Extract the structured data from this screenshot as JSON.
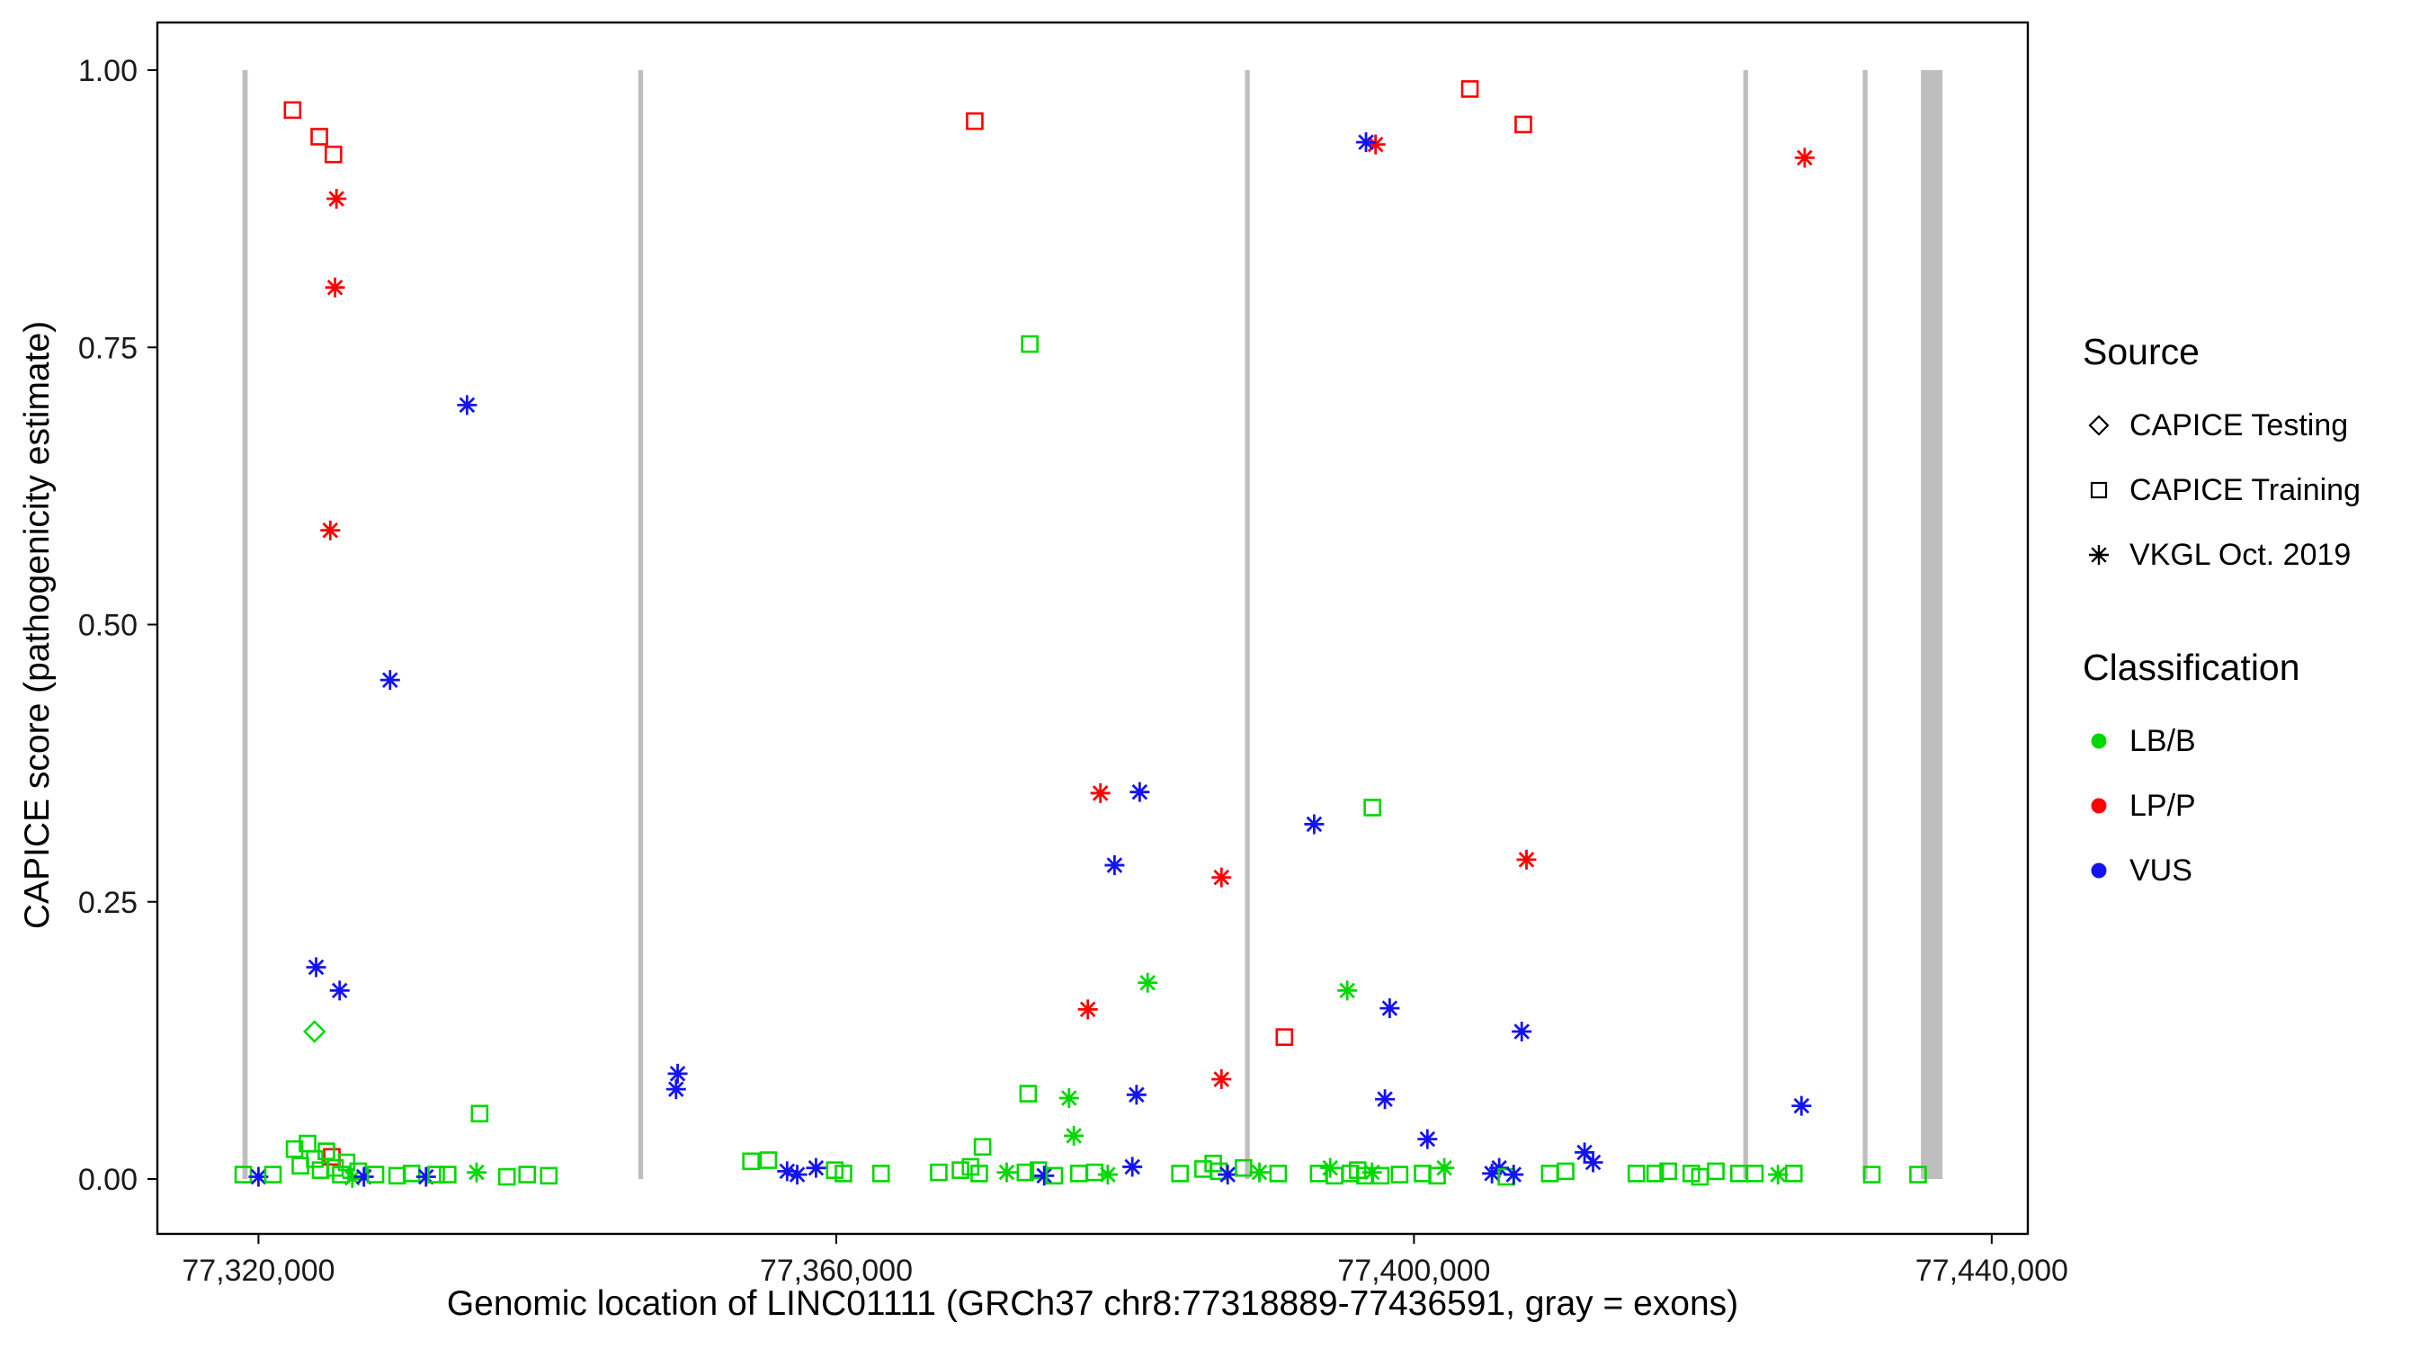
{
  "figure": {
    "background": "#FFFFFF"
  },
  "colors": {
    "B": "#00D800",
    "P": "#FF0000",
    "V": "#1414F0"
  },
  "legend": {
    "source_title": "Source",
    "source_items": [
      {
        "label": "CAPICE Testing",
        "marker": "diamond"
      },
      {
        "label": "CAPICE Training",
        "marker": "square"
      },
      {
        "label": "VKGL Oct. 2019",
        "marker": "asterisk"
      }
    ],
    "classification_title": "Classification",
    "classification_items": [
      {
        "label": "LB/B",
        "color": "#00D800"
      },
      {
        "label": "LP/P",
        "color": "#FF0000"
      },
      {
        "label": "VUS",
        "color": "#1414F0"
      }
    ]
  },
  "chart_data": {
    "type": "scatter",
    "title": "",
    "xlabel": "Genomic location of LINC01111 (GRCh37 chr8:77318889-77436591, gray = exons)",
    "ylabel": "CAPICE score (pathogenicity estimate)",
    "xlim": [
      77313000,
      77442500
    ],
    "ylim": [
      0,
      1
    ],
    "grid": false,
    "legend_position": "right",
    "x_ticks": [
      {
        "value": 77320000,
        "label": "77,320,000"
      },
      {
        "value": 77360000,
        "label": "77,360,000"
      },
      {
        "value": 77400000,
        "label": "77,400,000"
      },
      {
        "value": 77440000,
        "label": "77,440,000"
      }
    ],
    "y_ticks": [
      {
        "value": 1.0,
        "label": "1.00"
      },
      {
        "value": 0.75,
        "label": "0.75"
      },
      {
        "value": 0.5,
        "label": "0.50"
      },
      {
        "value": 0.25,
        "label": "0.25"
      },
      {
        "value": 0.0,
        "label": "0.00"
      }
    ],
    "exon_color": "#BEBEBE",
    "exons": [
      [
        77318889,
        77319250
      ],
      [
        77346300,
        77346630
      ],
      [
        77388300,
        77388630
      ],
      [
        77422800,
        77423130
      ],
      [
        77431070,
        77431400
      ],
      [
        77435100,
        77436591
      ]
    ],
    "source_codes": {
      "D": "CAPICE Testing",
      "S": "CAPICE Training",
      "A": "VKGL Oct. 2019"
    },
    "class_codes": {
      "B": "LB/B",
      "P": "LP/P",
      "V": "VUS"
    },
    "points": [
      [
        77322360,
        0.964,
        "S",
        "P"
      ],
      [
        77324210,
        0.94,
        "S",
        "P"
      ],
      [
        77325190,
        0.924,
        "S",
        "P"
      ],
      [
        77369590,
        0.954,
        "S",
        "P"
      ],
      [
        77403870,
        0.983,
        "S",
        "P"
      ],
      [
        77407570,
        0.951,
        "S",
        "P"
      ],
      [
        77391030,
        0.128,
        "S",
        "P"
      ],
      [
        77325080,
        0.02,
        "S",
        "P"
      ],
      [
        77325400,
        0.884,
        "A",
        "P"
      ],
      [
        77325300,
        0.804,
        "A",
        "P"
      ],
      [
        77324970,
        0.585,
        "A",
        "P"
      ],
      [
        77397340,
        0.933,
        "A",
        "P"
      ],
      [
        77427050,
        0.921,
        "A",
        "P"
      ],
      [
        77378290,
        0.348,
        "A",
        "P"
      ],
      [
        77386670,
        0.272,
        "A",
        "P"
      ],
      [
        77407790,
        0.288,
        "A",
        "P"
      ],
      [
        77377420,
        0.153,
        "A",
        "P"
      ],
      [
        77386670,
        0.09,
        "A",
        "P"
      ],
      [
        77334440,
        0.698,
        "A",
        "V"
      ],
      [
        77329110,
        0.45,
        "A",
        "V"
      ],
      [
        77323990,
        0.191,
        "A",
        "V"
      ],
      [
        77325620,
        0.17,
        "A",
        "V"
      ],
      [
        77396680,
        0.935,
        "A",
        "V"
      ],
      [
        77381010,
        0.349,
        "A",
        "V"
      ],
      [
        77379270,
        0.283,
        "A",
        "V"
      ],
      [
        77393090,
        0.32,
        "A",
        "V"
      ],
      [
        77398320,
        0.154,
        "A",
        "V"
      ],
      [
        77407460,
        0.133,
        "A",
        "V"
      ],
      [
        77380790,
        0.076,
        "A",
        "V"
      ],
      [
        77397990,
        0.072,
        "A",
        "V"
      ],
      [
        77426830,
        0.066,
        "A",
        "V"
      ],
      [
        77349020,
        0.095,
        "A",
        "V"
      ],
      [
        77348910,
        0.081,
        "A",
        "V"
      ],
      [
        77400930,
        0.036,
        "A",
        "V"
      ],
      [
        77411810,
        0.024,
        "A",
        "V"
      ],
      [
        77373400,
        0.753,
        "S",
        "B"
      ],
      [
        77397120,
        0.335,
        "S",
        "B"
      ],
      [
        77335310,
        0.059,
        "S",
        "B"
      ],
      [
        77373290,
        0.077,
        "S",
        "B"
      ],
      [
        77370130,
        0.029,
        "S",
        "B"
      ],
      [
        77381560,
        0.177,
        "A",
        "B"
      ],
      [
        77395380,
        0.17,
        "A",
        "B"
      ],
      [
        77376120,
        0.073,
        "A",
        "B"
      ],
      [
        77376450,
        0.039,
        "A",
        "B"
      ],
      [
        77323880,
        0.133,
        "D",
        "B"
      ],
      [
        77318950,
        0.004,
        "S",
        "B"
      ],
      [
        77320000,
        0.002,
        "A",
        "V"
      ],
      [
        77321000,
        0.004,
        "S",
        "B"
      ],
      [
        77322500,
        0.027,
        "S",
        "B"
      ],
      [
        77322900,
        0.012,
        "S",
        "B"
      ],
      [
        77323400,
        0.032,
        "S",
        "B"
      ],
      [
        77323900,
        0.018,
        "S",
        "B"
      ],
      [
        77324300,
        0.008,
        "S",
        "B"
      ],
      [
        77324700,
        0.025,
        "S",
        "B"
      ],
      [
        77325300,
        0.01,
        "S",
        "B"
      ],
      [
        77325700,
        0.004,
        "S",
        "B"
      ],
      [
        77326100,
        0.015,
        "S",
        "B"
      ],
      [
        77326500,
        0.001,
        "A",
        "B"
      ],
      [
        77326900,
        0.007,
        "S",
        "B"
      ],
      [
        77327300,
        0.002,
        "A",
        "V"
      ],
      [
        77328100,
        0.004,
        "S",
        "B"
      ],
      [
        77329600,
        0.003,
        "S",
        "B"
      ],
      [
        77330600,
        0.005,
        "S",
        "B"
      ],
      [
        77331600,
        0.002,
        "A",
        "V"
      ],
      [
        77332300,
        0.004,
        "S",
        "B"
      ],
      [
        77333100,
        0.004,
        "S",
        "B"
      ],
      [
        77335100,
        0.006,
        "A",
        "B"
      ],
      [
        77337200,
        0.002,
        "S",
        "B"
      ],
      [
        77338600,
        0.004,
        "S",
        "B"
      ],
      [
        77340100,
        0.003,
        "S",
        "B"
      ],
      [
        77354100,
        0.016,
        "S",
        "B"
      ],
      [
        77355300,
        0.017,
        "S",
        "B"
      ],
      [
        77356600,
        0.007,
        "A",
        "V"
      ],
      [
        77357300,
        0.004,
        "A",
        "V"
      ],
      [
        77358600,
        0.01,
        "A",
        "V"
      ],
      [
        77359900,
        0.008,
        "S",
        "B"
      ],
      [
        77360500,
        0.005,
        "S",
        "B"
      ],
      [
        77363100,
        0.005,
        "S",
        "B"
      ],
      [
        77367100,
        0.006,
        "S",
        "B"
      ],
      [
        77368600,
        0.008,
        "S",
        "B"
      ],
      [
        77369300,
        0.011,
        "S",
        "B"
      ],
      [
        77369900,
        0.005,
        "S",
        "B"
      ],
      [
        77371800,
        0.006,
        "A",
        "B"
      ],
      [
        77373100,
        0.006,
        "S",
        "B"
      ],
      [
        77374000,
        0.008,
        "S",
        "B"
      ],
      [
        77374400,
        0.003,
        "A",
        "V"
      ],
      [
        77375100,
        0.003,
        "S",
        "B"
      ],
      [
        77376800,
        0.005,
        "S",
        "B"
      ],
      [
        77377900,
        0.006,
        "S",
        "B"
      ],
      [
        77378800,
        0.004,
        "A",
        "B"
      ],
      [
        77380500,
        0.011,
        "A",
        "V"
      ],
      [
        77383800,
        0.005,
        "S",
        "B"
      ],
      [
        77385400,
        0.009,
        "S",
        "B"
      ],
      [
        77386100,
        0.014,
        "S",
        "B"
      ],
      [
        77386500,
        0.007,
        "S",
        "B"
      ],
      [
        77387100,
        0.004,
        "A",
        "V"
      ],
      [
        77388200,
        0.01,
        "S",
        "B"
      ],
      [
        77389300,
        0.006,
        "A",
        "B"
      ],
      [
        77390600,
        0.005,
        "S",
        "B"
      ],
      [
        77393400,
        0.005,
        "S",
        "B"
      ],
      [
        77394200,
        0.01,
        "A",
        "B"
      ],
      [
        77394500,
        0.003,
        "S",
        "B"
      ],
      [
        77395600,
        0.005,
        "S",
        "B"
      ],
      [
        77396100,
        0.008,
        "S",
        "B"
      ],
      [
        77396600,
        0.003,
        "S",
        "B"
      ],
      [
        77397100,
        0.006,
        "A",
        "B"
      ],
      [
        77397700,
        0.003,
        "S",
        "B"
      ],
      [
        77399000,
        0.004,
        "S",
        "B"
      ],
      [
        77400600,
        0.005,
        "S",
        "B"
      ],
      [
        77401600,
        0.003,
        "S",
        "B"
      ],
      [
        77402100,
        0.01,
        "A",
        "B"
      ],
      [
        77405400,
        0.005,
        "A",
        "V"
      ],
      [
        77405900,
        0.01,
        "A",
        "V"
      ],
      [
        77406400,
        0.002,
        "S",
        "B"
      ],
      [
        77406900,
        0.004,
        "A",
        "V"
      ],
      [
        77409400,
        0.005,
        "S",
        "B"
      ],
      [
        77410500,
        0.007,
        "S",
        "B"
      ],
      [
        77412400,
        0.015,
        "A",
        "V"
      ],
      [
        77415400,
        0.005,
        "S",
        "B"
      ],
      [
        77416700,
        0.005,
        "S",
        "B"
      ],
      [
        77417600,
        0.007,
        "S",
        "B"
      ],
      [
        77419200,
        0.005,
        "S",
        "B"
      ],
      [
        77419800,
        0.002,
        "S",
        "B"
      ],
      [
        77420900,
        0.007,
        "S",
        "B"
      ],
      [
        77422500,
        0.005,
        "S",
        "B"
      ],
      [
        77423600,
        0.005,
        "S",
        "B"
      ],
      [
        77425200,
        0.004,
        "A",
        "B"
      ],
      [
        77426300,
        0.005,
        "S",
        "B"
      ],
      [
        77431700,
        0.004,
        "S",
        "B"
      ],
      [
        77434900,
        0.004,
        "S",
        "B"
      ]
    ]
  }
}
